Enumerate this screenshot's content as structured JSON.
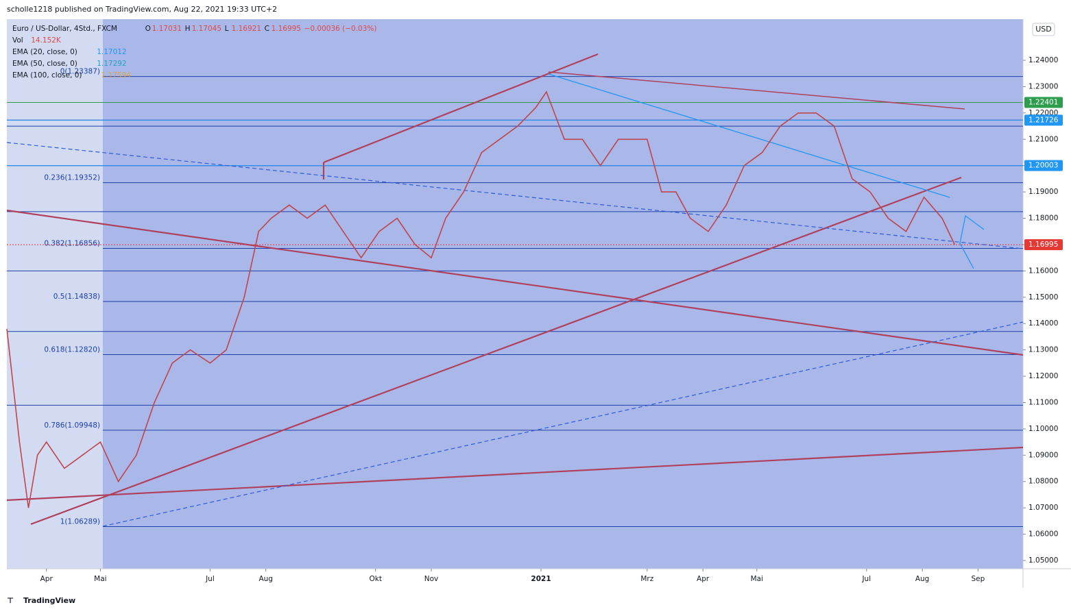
{
  "chart_data": {
    "type": "line",
    "publisher": "scholle1218 published on TradingView.com, Aug 22, 2021 19:33 UTC+2",
    "title": "Euro / US-Dollar, 4Std., FXCM",
    "ohlc": [
      {
        "label": "O",
        "value": 1.17031
      },
      {
        "label": "H",
        "value": 1.17045
      },
      {
        "label": "L",
        "value": 1.16921
      },
      {
        "label": "C",
        "value": 1.16995
      }
    ],
    "change": "−0.00036 (−0.03%)",
    "indicators": [
      {
        "name": "Vol",
        "value": "14.152K",
        "color": "#e04848"
      },
      {
        "name": "EMA (20, close, 0)",
        "value": 1.17012,
        "color": "#2196f3"
      },
      {
        "name": "EMA (50, close, 0)",
        "value": 1.17292,
        "color": "#1fa3c2"
      },
      {
        "name": "EMA (100, close, 0)",
        "value": 1.17594,
        "color": "#d9a441"
      }
    ],
    "currency": "USD",
    "brand": "TradingView",
    "color": "#c0444c",
    "x": [
      -22,
      -15,
      -10,
      -5,
      0,
      10,
      20,
      30,
      40,
      50,
      60,
      70,
      80,
      91,
      100,
      110,
      118,
      125,
      135,
      145,
      155,
      165,
      175,
      185,
      195,
      205,
      214,
      222,
      232,
      242,
      252,
      262,
      272,
      278,
      288,
      298,
      308,
      318,
      328,
      334,
      342,
      350,
      358,
      368,
      378,
      388,
      398,
      408,
      418,
      428,
      438,
      448,
      458,
      468,
      478,
      488,
      498,
      505
    ],
    "values": [
      1.138,
      1.095,
      1.07,
      1.09,
      1.095,
      1.085,
      1.09,
      1.095,
      1.08,
      1.09,
      1.11,
      1.125,
      1.13,
      1.125,
      1.13,
      1.15,
      1.175,
      1.18,
      1.185,
      1.18,
      1.185,
      1.175,
      1.165,
      1.175,
      1.18,
      1.17,
      1.165,
      1.18,
      1.19,
      1.205,
      1.21,
      1.215,
      1.222,
      1.228,
      1.21,
      1.21,
      1.2,
      1.21,
      1.21,
      1.21,
      1.19,
      1.19,
      1.18,
      1.175,
      1.185,
      1.2,
      1.205,
      1.215,
      1.22,
      1.22,
      1.215,
      1.195,
      1.19,
      1.18,
      1.175,
      1.188,
      1.18,
      1.17
    ],
    "xlim": [
      -22,
      543
    ],
    "xticks": [
      {
        "value": 0,
        "label": "Apr"
      },
      {
        "value": 30,
        "label": "Mai"
      },
      {
        "value": 91,
        "label": "Jul"
      },
      {
        "value": 122,
        "label": "Aug"
      },
      {
        "value": 183,
        "label": "Okt"
      },
      {
        "value": 214,
        "label": "Nov"
      },
      {
        "value": 275,
        "label": "2021"
      },
      {
        "value": 334,
        "label": "Mrz"
      },
      {
        "value": 365,
        "label": "Apr"
      },
      {
        "value": 395,
        "label": "Mai"
      },
      {
        "value": 456,
        "label": "Jul"
      },
      {
        "value": 487,
        "label": "Aug"
      },
      {
        "value": 518,
        "label": "Sep"
      }
    ],
    "ylim": [
      1.04688,
      1.25562
    ],
    "yticks": [
      {
        "value": 1.05,
        "label": "1.05000"
      },
      {
        "value": 1.06,
        "label": "1.06000"
      },
      {
        "value": 1.07,
        "label": "1.07000"
      },
      {
        "value": 1.08,
        "label": "1.08000"
      },
      {
        "value": 1.09,
        "label": "1.09000"
      },
      {
        "value": 1.1,
        "label": "1.10000"
      },
      {
        "value": 1.11,
        "label": "1.11000"
      },
      {
        "value": 1.12,
        "label": "1.12000"
      },
      {
        "value": 1.13,
        "label": "1.13000"
      },
      {
        "value": 1.14,
        "label": "1.14000"
      },
      {
        "value": 1.15,
        "label": "1.15000"
      },
      {
        "value": 1.16,
        "label": "1.16000"
      },
      {
        "value": 1.17,
        "label": "1.17000"
      },
      {
        "value": 1.18,
        "label": "1.18000"
      },
      {
        "value": 1.19,
        "label": "1.19000"
      },
      {
        "value": 1.2,
        "label": "1.20000"
      },
      {
        "value": 1.21,
        "label": "1.21000"
      },
      {
        "value": 1.22,
        "label": "1.22000"
      },
      {
        "value": 1.23,
        "label": "1.23000"
      },
      {
        "value": 1.24,
        "label": "1.24000"
      }
    ],
    "fib_levels": [
      {
        "label": "0(1.23387)",
        "value": 1.23387
      },
      {
        "label": "0.236(1.19352)",
        "value": 1.19352
      },
      {
        "label": "0.382(1.16856)",
        "value": 1.16856
      },
      {
        "label": "0.5(1.14838)",
        "value": 1.14838
      },
      {
        "label": "0.618(1.12820)",
        "value": 1.1282
      },
      {
        "label": "0.786(1.09948)",
        "value": 1.09948
      },
      {
        "label": "1(1.06289)",
        "value": 1.06289
      }
    ],
    "hlines": [
      1.2173,
      1.215,
      1.2,
      1.1825,
      1.16,
      1.137,
      1.109
    ],
    "price_labels": [
      {
        "value": 1.22401,
        "color": "#2e9e4e"
      },
      {
        "value": 1.21726,
        "color": "#2196f3"
      },
      {
        "value": 1.20003,
        "color": "#2196f3"
      },
      {
        "value": 1.16995,
        "color": "#e53935"
      }
    ]
  }
}
